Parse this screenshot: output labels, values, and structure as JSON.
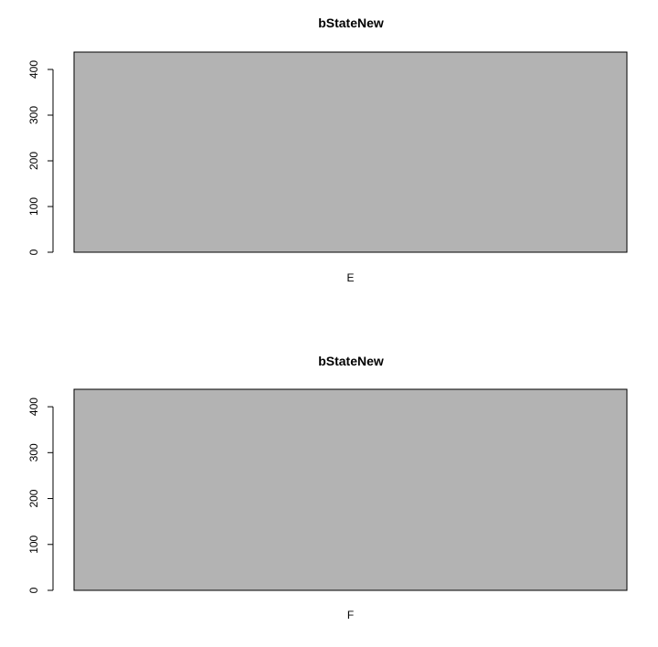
{
  "chart_data": [
    {
      "type": "bar",
      "title": "bStateNew",
      "categories": [
        "E"
      ],
      "values": [
        438
      ],
      "xlabel": "",
      "ylabel": "",
      "ylim": [
        0,
        438
      ],
      "yticks": [
        0,
        100,
        200,
        300,
        400
      ],
      "bar_color": "#b3b3b3",
      "grid": false
    },
    {
      "type": "bar",
      "title": "bStateNew",
      "categories": [
        "F"
      ],
      "values": [
        438
      ],
      "xlabel": "",
      "ylabel": "",
      "ylim": [
        0,
        438
      ],
      "yticks": [
        0,
        100,
        200,
        300,
        400
      ],
      "bar_color": "#b3b3b3",
      "grid": false
    }
  ]
}
